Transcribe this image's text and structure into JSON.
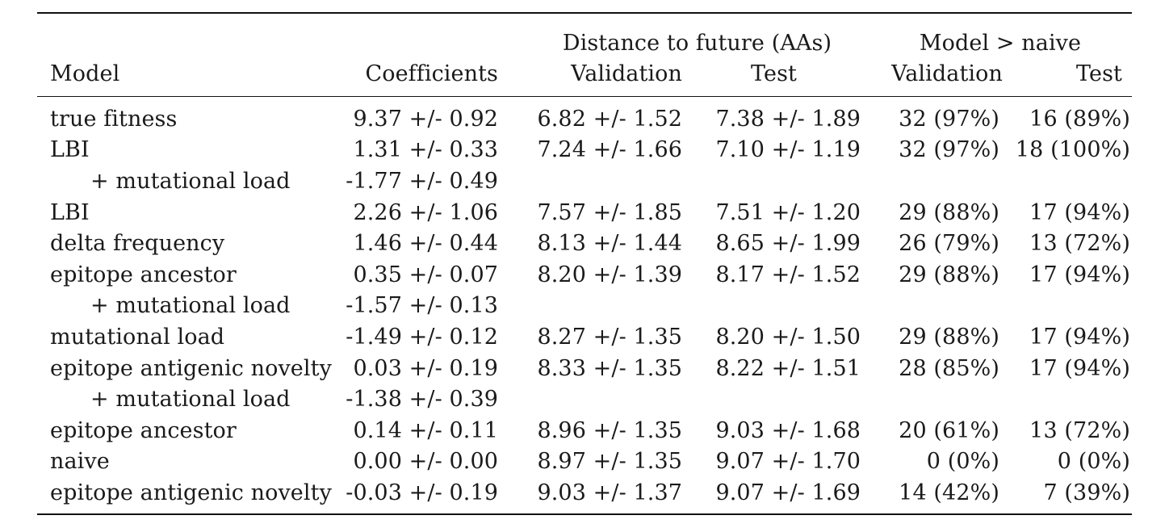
{
  "table": {
    "group_headers": {
      "distance": "Distance to future (AAs)",
      "model_vs_naive": "Model > naive"
    },
    "columns": {
      "model": "Model",
      "coefficients": "Coefficients",
      "dist_validation": "Validation",
      "dist_test": "Test",
      "naive_validation": "Validation",
      "naive_test": "Test"
    },
    "rows": [
      {
        "model": "true fitness",
        "indent": false,
        "coefficients": "9.37 +/- 0.92",
        "dist_validation": "6.82 +/- 1.52",
        "dist_test": "7.38 +/- 1.89",
        "naive_validation": "32 (97%)",
        "naive_test": "16 (89%)"
      },
      {
        "model": "LBI",
        "indent": false,
        "coefficients": "1.31 +/- 0.33",
        "dist_validation": "7.24 +/- 1.66",
        "dist_test": "7.10 +/- 1.19",
        "naive_validation": "32 (97%)",
        "naive_test": "18 (100%)"
      },
      {
        "model": "+ mutational load",
        "indent": true,
        "coefficients": "-1.77 +/- 0.49",
        "dist_validation": "",
        "dist_test": "",
        "naive_validation": "",
        "naive_test": ""
      },
      {
        "model": "LBI",
        "indent": false,
        "coefficients": "2.26 +/- 1.06",
        "dist_validation": "7.57 +/- 1.85",
        "dist_test": "7.51 +/- 1.20",
        "naive_validation": "29 (88%)",
        "naive_test": "17 (94%)"
      },
      {
        "model": "delta frequency",
        "indent": false,
        "coefficients": "1.46 +/- 0.44",
        "dist_validation": "8.13 +/- 1.44",
        "dist_test": "8.65 +/- 1.99",
        "naive_validation": "26 (79%)",
        "naive_test": "13 (72%)"
      },
      {
        "model": "epitope ancestor",
        "indent": false,
        "coefficients": "0.35 +/- 0.07",
        "dist_validation": "8.20 +/- 1.39",
        "dist_test": "8.17 +/- 1.52",
        "naive_validation": "29 (88%)",
        "naive_test": "17 (94%)"
      },
      {
        "model": "+ mutational load",
        "indent": true,
        "coefficients": "-1.57 +/- 0.13",
        "dist_validation": "",
        "dist_test": "",
        "naive_validation": "",
        "naive_test": ""
      },
      {
        "model": "mutational load",
        "indent": false,
        "coefficients": "-1.49 +/- 0.12",
        "dist_validation": "8.27 +/- 1.35",
        "dist_test": "8.20 +/- 1.50",
        "naive_validation": "29 (88%)",
        "naive_test": "17 (94%)"
      },
      {
        "model": "epitope antigenic novelty",
        "indent": false,
        "coefficients": "0.03 +/- 0.19",
        "dist_validation": "8.33 +/- 1.35",
        "dist_test": "8.22 +/- 1.51",
        "naive_validation": "28 (85%)",
        "naive_test": "17 (94%)"
      },
      {
        "model": "+ mutational load",
        "indent": true,
        "coefficients": "-1.38 +/- 0.39",
        "dist_validation": "",
        "dist_test": "",
        "naive_validation": "",
        "naive_test": ""
      },
      {
        "model": "epitope ancestor",
        "indent": false,
        "coefficients": "0.14 +/- 0.11",
        "dist_validation": "8.96 +/- 1.35",
        "dist_test": "9.03 +/- 1.68",
        "naive_validation": "20 (61%)",
        "naive_test": "13 (72%)"
      },
      {
        "model": "naive",
        "indent": false,
        "coefficients": "0.00 +/- 0.00",
        "dist_validation": "8.97 +/- 1.35",
        "dist_test": "9.07 +/- 1.70",
        "naive_validation": "0 (0%)",
        "naive_test": "0 (0%)"
      },
      {
        "model": "epitope antigenic novelty",
        "indent": false,
        "coefficients": "-0.03 +/- 0.19",
        "dist_validation": "9.03 +/- 1.37",
        "dist_test": "9.07 +/- 1.69",
        "naive_validation": "14 (42%)",
        "naive_test": "7 (39%)"
      }
    ]
  }
}
